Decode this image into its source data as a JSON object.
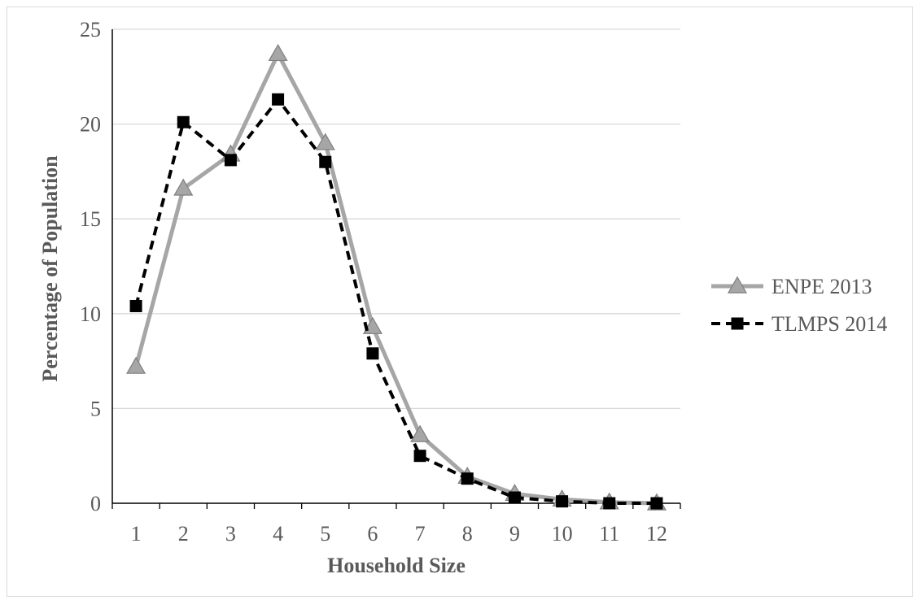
{
  "chart_data": {
    "type": "line",
    "title": "",
    "xlabel": "Household Size",
    "ylabel": "Percentage of Population",
    "categories": [
      "1",
      "2",
      "3",
      "4",
      "5",
      "6",
      "7",
      "8",
      "9",
      "10",
      "11",
      "12"
    ],
    "ylim": [
      0,
      25
    ],
    "yticks": [
      0,
      5,
      10,
      15,
      20,
      25
    ],
    "ytick_labels": [
      "0",
      "5",
      "10",
      "15",
      "20",
      "25"
    ],
    "grid": "horizontal",
    "legend_position": "right",
    "series": [
      {
        "name": "ENPE 2013",
        "values": [
          7.2,
          16.6,
          18.4,
          23.7,
          19.0,
          9.3,
          3.6,
          1.4,
          0.5,
          0.2,
          0.05,
          0.0
        ],
        "color": "#a6a6a6",
        "marker": "triangle",
        "marker_fill": "#a6a6a6",
        "marker_stroke": "#7f7f7f",
        "line_style": "solid"
      },
      {
        "name": "TLMPS 2014",
        "values": [
          10.4,
          20.1,
          18.1,
          21.3,
          18.0,
          7.9,
          2.5,
          1.3,
          0.3,
          0.1,
          0.0,
          0.0
        ],
        "color": "#000000",
        "marker": "square",
        "marker_fill": "#000000",
        "marker_stroke": "#000000",
        "line_style": "dashed"
      }
    ]
  }
}
